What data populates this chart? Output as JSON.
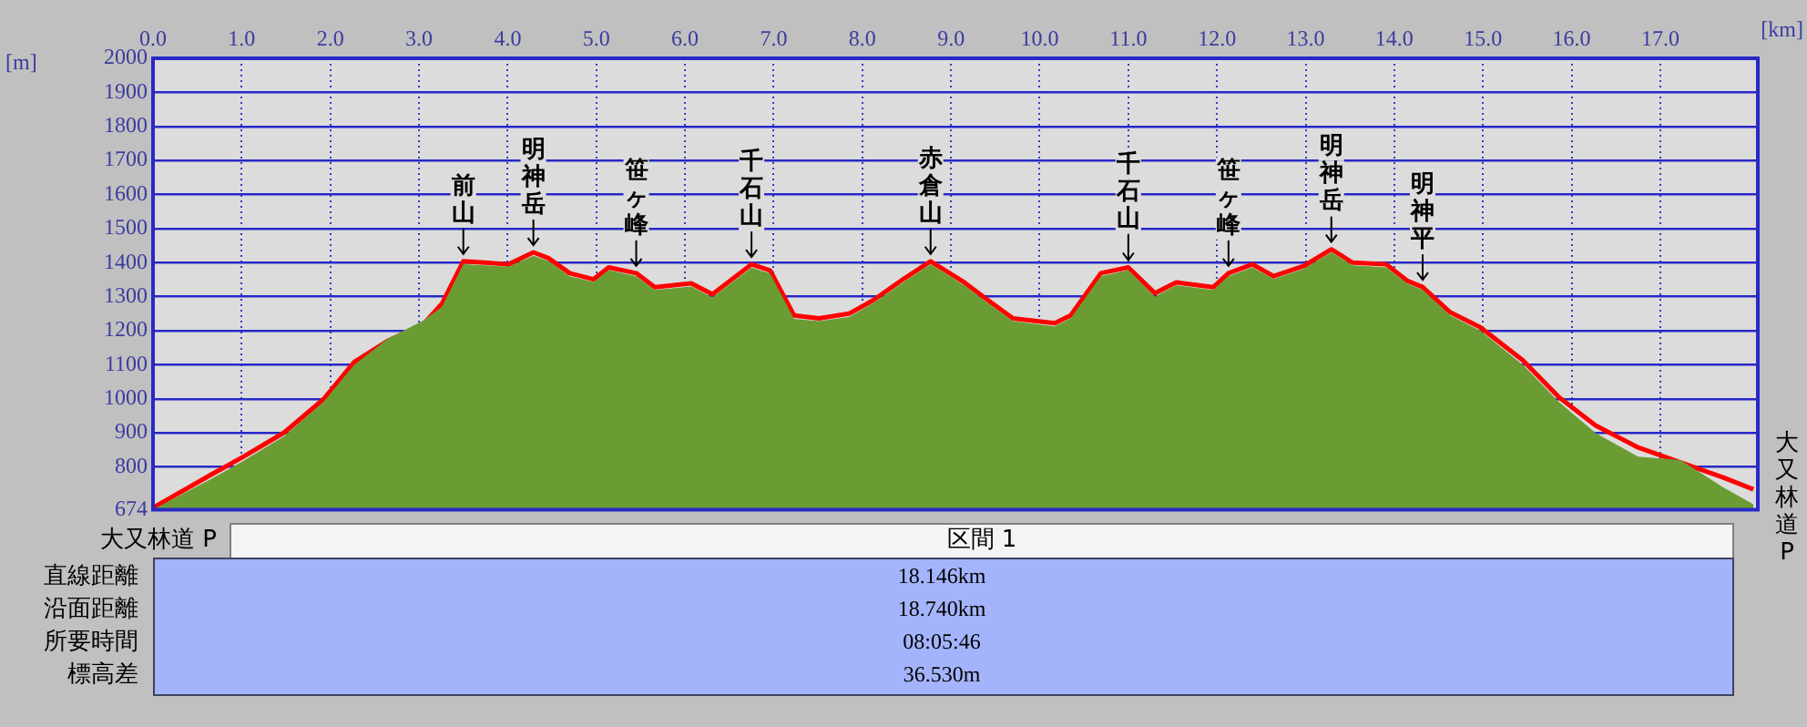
{
  "chart_data": {
    "type": "area",
    "xlabel": "[km]",
    "ylabel": "[m]",
    "x": [
      0,
      0.66,
      1.0,
      1.48,
      1.92,
      2.27,
      2.64,
      3.05,
      3.26,
      3.5,
      3.74,
      4.01,
      4.29,
      4.46,
      4.7,
      4.97,
      5.14,
      5.45,
      5.66,
      6.07,
      6.31,
      6.75,
      6.96,
      7.23,
      7.51,
      7.85,
      8.12,
      8.46,
      8.77,
      9.15,
      9.42,
      9.7,
      10.17,
      10.35,
      10.69,
      11.0,
      11.3,
      11.54,
      11.96,
      12.13,
      12.4,
      12.64,
      12.98,
      13.29,
      13.53,
      13.91,
      14.15,
      14.32,
      14.63,
      14.97,
      15.45,
      15.86,
      16.27,
      16.75,
      17.23,
      17.71,
      18.05
    ],
    "series": [
      {
        "type": "area",
        "color": "#6b9c34",
        "values": [
          674,
          765,
          815,
          890,
          990,
          1100,
          1175,
          1230,
          1270,
          1395,
          1392,
          1388,
          1420,
          1405,
          1360,
          1343,
          1378,
          1360,
          1320,
          1330,
          1298,
          1385,
          1368,
          1235,
          1228,
          1240,
          1280,
          1342,
          1395,
          1333,
          1280,
          1228,
          1213,
          1236,
          1360,
          1378,
          1300,
          1333,
          1320,
          1360,
          1386,
          1352,
          1382,
          1430,
          1392,
          1386,
          1338,
          1320,
          1245,
          1200,
          1100,
          990,
          900,
          830,
          820,
          740,
          690
        ]
      },
      {
        "type": "line",
        "color": "#ff0000",
        "values": [
          680,
          778,
          827,
          901,
          998,
          1108,
          1169,
          1219,
          1280,
          1404,
          1400,
          1395,
          1430,
          1413,
          1369,
          1351,
          1386,
          1369,
          1328,
          1339,
          1307,
          1395,
          1377,
          1245,
          1236,
          1250,
          1289,
          1351,
          1404,
          1342,
          1289,
          1236,
          1222,
          1245,
          1369,
          1386,
          1310,
          1342,
          1328,
          1369,
          1395,
          1360,
          1390,
          1439,
          1400,
          1395,
          1346,
          1328,
          1254,
          1210,
          1113,
          1004,
          922,
          857,
          813,
          769,
          734
        ]
      }
    ],
    "xlim": [
      0,
      18.1
    ],
    "xticks": [
      {
        "value": 0,
        "label": "0.0"
      },
      {
        "value": 1,
        "label": "1.0"
      },
      {
        "value": 2,
        "label": "2.0"
      },
      {
        "value": 3,
        "label": "3.0"
      },
      {
        "value": 4,
        "label": "4.0"
      },
      {
        "value": 5,
        "label": "5.0"
      },
      {
        "value": 6,
        "label": "6.0"
      },
      {
        "value": 7,
        "label": "7.0"
      },
      {
        "value": 8,
        "label": "8.0"
      },
      {
        "value": 9,
        "label": "9.0"
      },
      {
        "value": 10,
        "label": "10.0"
      },
      {
        "value": 11,
        "label": "11.0"
      },
      {
        "value": 12,
        "label": "12.0"
      },
      {
        "value": 13,
        "label": "13.0"
      },
      {
        "value": 14,
        "label": "14.0"
      },
      {
        "value": 15,
        "label": "15.0"
      },
      {
        "value": 16,
        "label": "16.0"
      },
      {
        "value": 17,
        "label": "17.0"
      }
    ],
    "ylim": [
      674,
      2000
    ],
    "yticks": [
      674,
      800,
      900,
      1000,
      1100,
      1200,
      1300,
      1400,
      1500,
      1600,
      1700,
      1800,
      1900,
      2000
    ],
    "grid": true,
    "legend": false,
    "marker": "none",
    "line_style": "solid",
    "annotations": [
      "大又林道 P",
      "大又林道P",
      "区間 1",
      "直線距離",
      "18.146km",
      "沿面距離",
      "18.740km",
      "所要時間",
      "08:05:46",
      "標高差",
      "36.530m",
      {
        "text": "前山",
        "x": 3.5,
        "y": 1404
      },
      {
        "text": "明神岳",
        "x": 4.29,
        "y": 1430
      },
      {
        "text": "笹ヶ峰",
        "x": 5.45,
        "y": 1369
      },
      {
        "text": "千石山",
        "x": 6.75,
        "y": 1395
      },
      {
        "text": "赤倉山",
        "x": 8.77,
        "y": 1404
      },
      {
        "text": "千石山",
        "x": 11.0,
        "y": 1386
      },
      {
        "text": "笹ヶ峰",
        "x": 12.13,
        "y": 1369
      },
      {
        "text": "明神岳",
        "x": 13.29,
        "y": 1439
      },
      {
        "text": "明神平",
        "x": 14.32,
        "y": 1328
      }
    ]
  }
}
